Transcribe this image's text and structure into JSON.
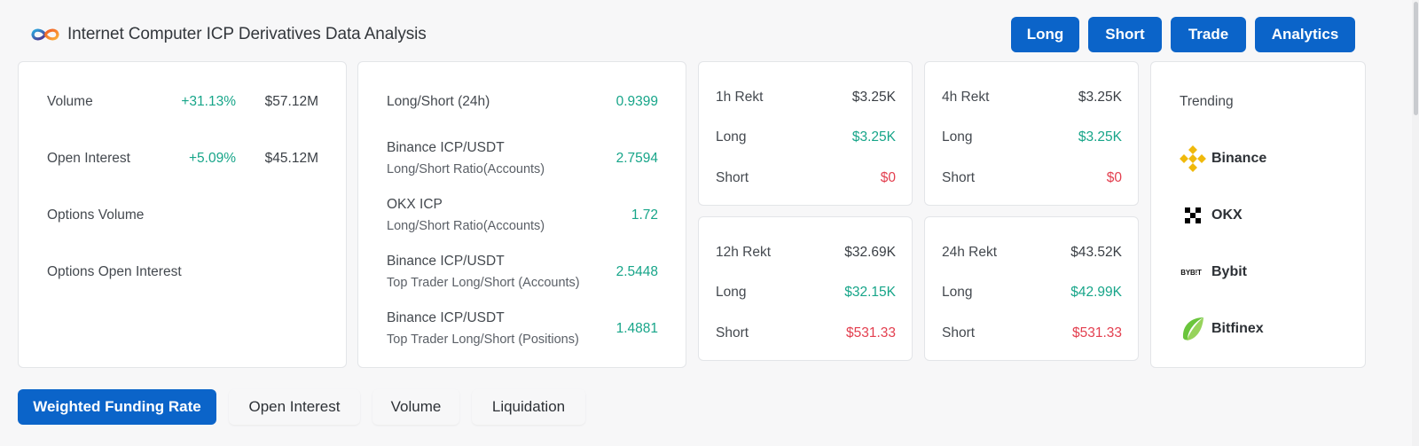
{
  "header": {
    "title": "Internet Computer ICP Derivatives Data Analysis",
    "buttons": [
      "Long",
      "Short",
      "Trade",
      "Analytics"
    ]
  },
  "overview": {
    "rows": [
      {
        "label": "Volume",
        "change": "+31.13%",
        "value": "$57.12M"
      },
      {
        "label": "Open Interest",
        "change": "+5.09%",
        "value": "$45.12M"
      },
      {
        "label": "Options Volume",
        "change": "",
        "value": ""
      },
      {
        "label": "Options Open Interest",
        "change": "",
        "value": ""
      }
    ]
  },
  "ratios": {
    "rows": [
      {
        "label": "Long/Short (24h)",
        "sub": "",
        "value": "0.9399"
      },
      {
        "label": "Binance ICP/USDT",
        "sub": "Long/Short Ratio(Accounts)",
        "value": "2.7594"
      },
      {
        "label": "OKX ICP",
        "sub": "Long/Short Ratio(Accounts)",
        "value": "1.72"
      },
      {
        "label": "Binance ICP/USDT",
        "sub": "Top Trader Long/Short (Accounts)",
        "value": "2.5448"
      },
      {
        "label": "Binance ICP/USDT",
        "sub": "Top Trader Long/Short (Positions)",
        "value": "1.4881"
      }
    ]
  },
  "rekt": [
    {
      "title": "1h Rekt",
      "total": "$3.25K",
      "long_label": "Long",
      "long": "$3.25K",
      "short_label": "Short",
      "short": "$0"
    },
    {
      "title": "4h Rekt",
      "total": "$3.25K",
      "long_label": "Long",
      "long": "$3.25K",
      "short_label": "Short",
      "short": "$0"
    },
    {
      "title": "12h Rekt",
      "total": "$32.69K",
      "long_label": "Long",
      "long": "$32.15K",
      "short_label": "Short",
      "short": "$531.33"
    },
    {
      "title": "24h Rekt",
      "total": "$43.52K",
      "long_label": "Long",
      "long": "$42.99K",
      "short_label": "Short",
      "short": "$531.33"
    }
  ],
  "trending": {
    "title": "Trending",
    "exchanges": [
      {
        "name": "Binance",
        "icon": "binance-icon"
      },
      {
        "name": "OKX",
        "icon": "okx-icon"
      },
      {
        "name": "Bybit",
        "icon": "bybit-icon",
        "icon_text": "BYB!T"
      },
      {
        "name": "Bitfinex",
        "icon": "bitfinex-icon"
      }
    ]
  },
  "tabs": [
    "Weighted Funding Rate",
    "Open Interest",
    "Volume",
    "Liquidation"
  ],
  "colors": {
    "accent": "#0b64c9",
    "positive": "#17a589",
    "negative": "#e33f4f",
    "binance": "#f0b90b",
    "bitfinex": "#6ac53c"
  }
}
